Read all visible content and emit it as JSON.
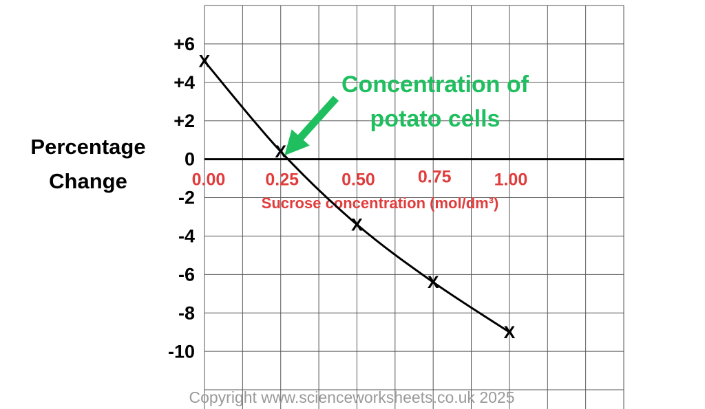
{
  "chart_data": {
    "type": "line",
    "y_label": [
      "Percentage",
      "Change"
    ],
    "x_label": "Sucrose concentration (mol/dm³)",
    "annotation": [
      "Concentration of",
      "potato cells"
    ],
    "footer": "Copyright www.scienceworksheets.co.uk 2025",
    "x": [
      0,
      0.25,
      0.5,
      0.75,
      1.0
    ],
    "series": [
      {
        "name": "Percentage change",
        "color": "#000000",
        "values": [
          5.1,
          0.4,
          -3.4,
          -6.4,
          -9.0
        ]
      }
    ],
    "marker": "X",
    "xlim": [
      0,
      1.375
    ],
    "ylim": [
      -13,
      8
    ],
    "xticks": [
      {
        "value": 0,
        "label": "0.00"
      },
      0.25,
      {
        "value": 0.5,
        "label": "0.50"
      },
      0.75,
      {
        "value": 1,
        "label": "1.00"
      }
    ],
    "yticks": [
      {
        "value": 6,
        "label": "+6"
      },
      {
        "value": 4,
        "label": "+4"
      },
      {
        "value": 2,
        "label": "+2"
      },
      0,
      -2,
      -4,
      -6,
      -8,
      -10
    ],
    "x_gridlines": [
      0,
      0.125,
      0.25,
      0.375,
      0.5,
      0.625,
      0.75,
      0.875,
      1,
      1.125,
      1.25,
      1.375
    ],
    "y_gridlines": [
      8,
      6,
      4,
      2,
      -2,
      -4,
      -6,
      -8,
      -10,
      -12
    ],
    "grid": true,
    "tick_label_color": "#e03c3c",
    "annotation_color": "#1fbf5f"
  }
}
